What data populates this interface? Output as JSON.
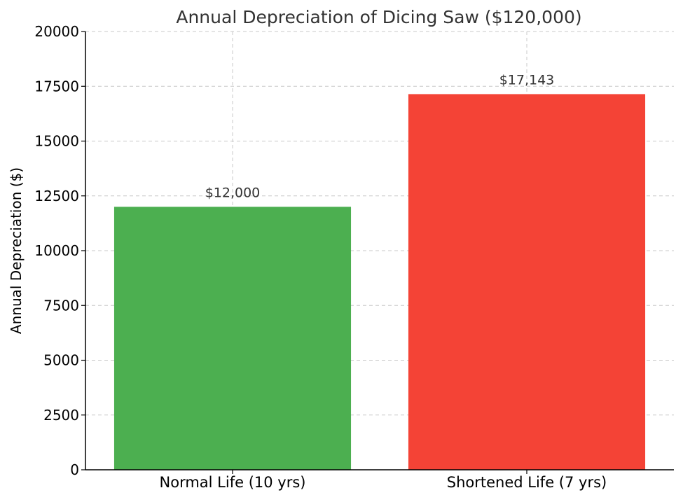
{
  "chart_data": {
    "type": "bar",
    "title": "Annual Depreciation of Dicing Saw ($120,000)",
    "xlabel": "",
    "ylabel": "Annual Depreciation ($)",
    "categories": [
      "Normal Life (10 yrs)",
      "Shortened Life (7 yrs)"
    ],
    "values": [
      12000,
      17143
    ],
    "data_labels": [
      "$12,000",
      "$17,143"
    ],
    "colors": [
      "#4caf50",
      "#f44336"
    ],
    "ylim": [
      0,
      20000
    ],
    "yticks": [
      0,
      2500,
      5000,
      7500,
      10000,
      12500,
      15000,
      17500,
      20000
    ],
    "grid": true
  }
}
